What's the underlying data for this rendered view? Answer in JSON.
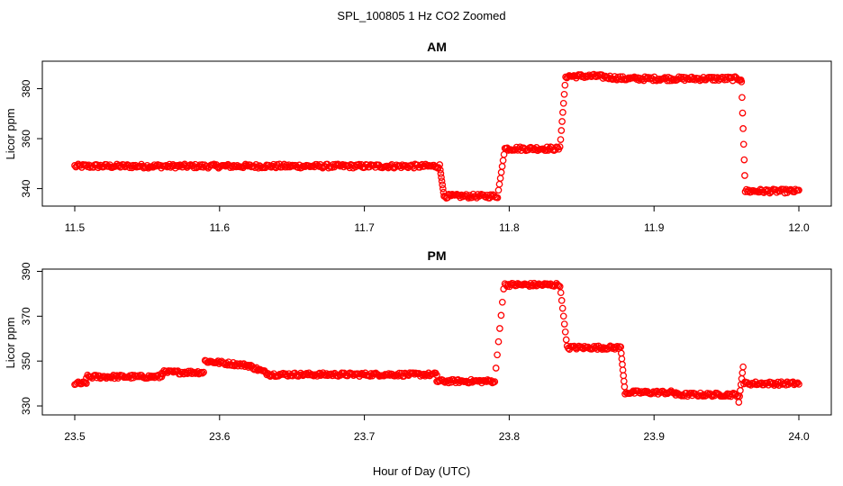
{
  "figure": {
    "title": "SPL_100805  1 Hz CO2 Zoomed",
    "xlabel": "Hour of Day (UTC)"
  },
  "chart_data": [
    {
      "type": "scatter",
      "title": "AM",
      "ylabel": "Licor ppm",
      "xlim": [
        11.5,
        12.0
      ],
      "ylim": [
        333,
        391
      ],
      "xticks": [
        "11.5",
        "11.6",
        "11.7",
        "11.8",
        "11.9",
        "12.0"
      ],
      "xtick_values": [
        11.5,
        11.6,
        11.7,
        11.8,
        11.9,
        12.0
      ],
      "yticks": [
        "340",
        "360",
        "380"
      ],
      "ytick_values": [
        340,
        360,
        380
      ],
      "marker": "open-circle",
      "color": "#ff0000",
      "segments": [
        {
          "x": [
            11.5,
            11.752
          ],
          "y": [
            349,
            349
          ]
        },
        {
          "x": [
            11.755,
            11.792
          ],
          "y": [
            337,
            337
          ]
        },
        {
          "x": [
            11.797,
            11.835
          ],
          "y": [
            356,
            356
          ]
        },
        {
          "x": [
            11.839,
            11.86
          ],
          "y": [
            385,
            385
          ]
        },
        {
          "x": [
            11.86,
            11.88
          ],
          "y": [
            385,
            384
          ]
        },
        {
          "x": [
            11.88,
            11.96
          ],
          "y": [
            384,
            384
          ]
        },
        {
          "x": [
            11.963,
            12.0
          ],
          "y": [
            339,
            339
          ]
        }
      ],
      "transitions": [
        {
          "x": [
            11.752,
            11.755
          ],
          "y": [
            349,
            337
          ]
        },
        {
          "x": [
            11.792,
            11.797
          ],
          "y": [
            337,
            356
          ]
        },
        {
          "x": [
            11.835,
            11.839
          ],
          "y": [
            356,
            385
          ]
        },
        {
          "x": [
            11.96,
            11.963
          ],
          "y": [
            389,
            339
          ]
        }
      ]
    },
    {
      "type": "scatter",
      "title": "PM",
      "ylabel": "Licor ppm",
      "xlim": [
        23.5,
        24.0
      ],
      "ylim": [
        326,
        391
      ],
      "xticks": [
        "23.5",
        "23.6",
        "23.7",
        "23.8",
        "23.9",
        "24.0"
      ],
      "xtick_values": [
        23.5,
        23.6,
        23.7,
        23.8,
        23.9,
        24.0
      ],
      "yticks": [
        "330",
        "350",
        "370",
        "390"
      ],
      "ytick_values": [
        330,
        350,
        370,
        390
      ],
      "marker": "open-circle",
      "color": "#ff0000",
      "segments": [
        {
          "x": [
            23.5,
            23.508
          ],
          "y": [
            340,
            340
          ]
        },
        {
          "x": [
            23.508,
            23.56
          ],
          "y": [
            343,
            343
          ]
        },
        {
          "x": [
            23.56,
            23.589
          ],
          "y": [
            345,
            345
          ]
        },
        {
          "x": [
            23.59,
            23.62
          ],
          "y": [
            350,
            348
          ]
        },
        {
          "x": [
            23.62,
            23.635
          ],
          "y": [
            348,
            344
          ]
        },
        {
          "x": [
            23.635,
            23.75
          ],
          "y": [
            344,
            344
          ]
        },
        {
          "x": [
            23.75,
            23.79
          ],
          "y": [
            341,
            341
          ]
        },
        {
          "x": [
            23.797,
            23.835
          ],
          "y": [
            384,
            384
          ]
        },
        {
          "x": [
            23.84,
            23.877
          ],
          "y": [
            356,
            356
          ]
        },
        {
          "x": [
            23.88,
            23.915
          ],
          "y": [
            336,
            336
          ]
        },
        {
          "x": [
            23.915,
            23.958
          ],
          "y": [
            335,
            335
          ]
        },
        {
          "x": [
            23.962,
            24.0
          ],
          "y": [
            340,
            340
          ]
        }
      ],
      "transitions": [
        {
          "x": [
            23.79,
            23.797
          ],
          "y": [
            341,
            388
          ]
        },
        {
          "x": [
            23.835,
            23.84
          ],
          "y": [
            384,
            356
          ]
        },
        {
          "x": [
            23.877,
            23.88
          ],
          "y": [
            356,
            336
          ]
        },
        {
          "x": [
            23.958,
            23.962
          ],
          "y": [
            329,
            350
          ]
        }
      ]
    }
  ]
}
